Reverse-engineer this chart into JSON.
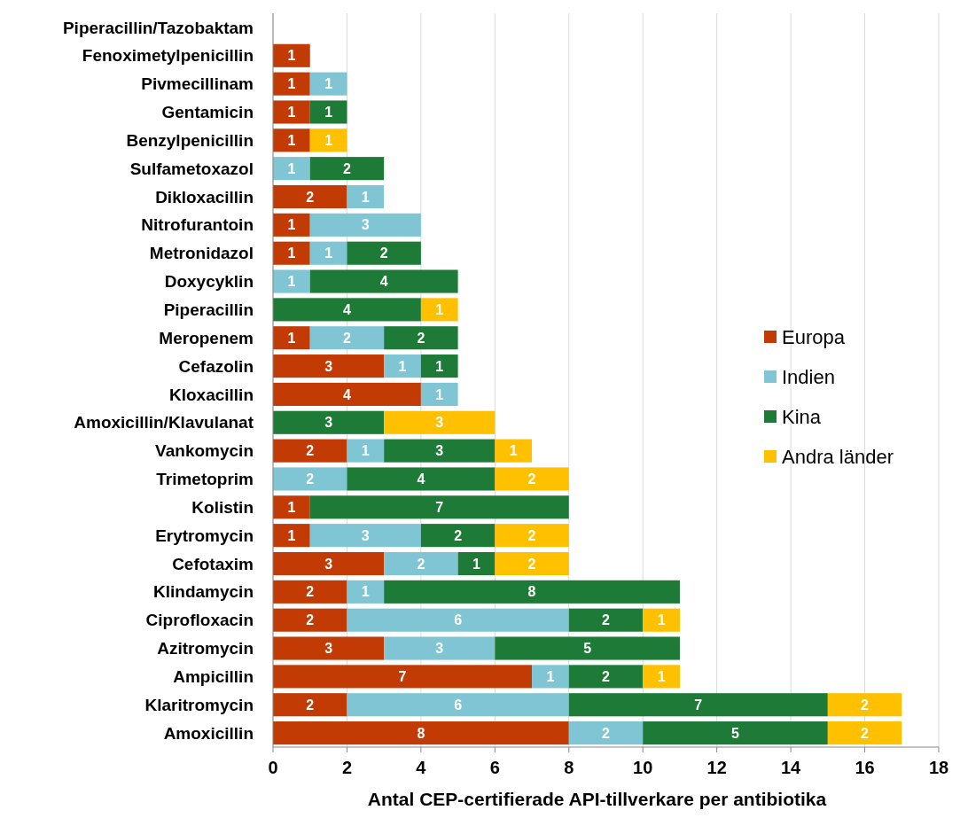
{
  "chart_data": {
    "type": "bar",
    "orientation": "horizontal",
    "stacked": true,
    "xlabel": "Antal CEP-certifierade API-tillverkare per antibiotika",
    "categories": [
      "Piperacillin/Tazobaktam",
      "Fenoximetylpenicillin",
      "Pivmecillinam",
      "Gentamicin",
      "Benzylpenicillin",
      "Sulfametoxazol",
      "Dikloxacillin",
      "Nitrofurantoin",
      "Metronidazol",
      "Doxycyklin",
      "Piperacillin",
      "Meropenem",
      "Cefazolin",
      "Kloxacillin",
      "Amoxicillin/Klavulanat",
      "Vankomycin",
      "Trimetoprim",
      "Kolistin",
      "Erytromycin",
      "Cefotaxim",
      "Klindamycin",
      "Ciprofloxacin",
      "Azitromycin",
      "Ampicillin",
      "Klaritromycin",
      "Amoxicillin"
    ],
    "series": [
      {
        "name": "Europa",
        "color": "#c23b04",
        "values": [
          null,
          1,
          1,
          1,
          1,
          null,
          2,
          1,
          1,
          null,
          null,
          1,
          3,
          4,
          null,
          2,
          null,
          1,
          1,
          3,
          2,
          2,
          3,
          7,
          2,
          8
        ]
      },
      {
        "name": "Indien",
        "color": "#7fc5d3",
        "values": [
          null,
          null,
          1,
          null,
          null,
          1,
          1,
          3,
          1,
          1,
          null,
          2,
          1,
          1,
          null,
          1,
          2,
          null,
          3,
          2,
          1,
          6,
          3,
          1,
          6,
          2
        ]
      },
      {
        "name": "Kina",
        "color": "#1e7b37",
        "values": [
          null,
          null,
          null,
          1,
          null,
          2,
          null,
          null,
          2,
          4,
          4,
          2,
          1,
          null,
          3,
          3,
          4,
          7,
          2,
          1,
          8,
          2,
          5,
          2,
          7,
          5
        ]
      },
      {
        "name": "Andra länder",
        "color": "#ffc000",
        "values": [
          null,
          null,
          null,
          null,
          1,
          null,
          null,
          null,
          null,
          null,
          1,
          null,
          null,
          null,
          3,
          1,
          2,
          null,
          2,
          2,
          null,
          1,
          null,
          1,
          2,
          2
        ]
      }
    ],
    "xlim": [
      0,
      18
    ],
    "xticks": [
      0,
      2,
      4,
      6,
      8,
      10,
      12,
      14,
      16,
      18
    ],
    "grid": "x",
    "legend": "right",
    "data_labels": true
  }
}
